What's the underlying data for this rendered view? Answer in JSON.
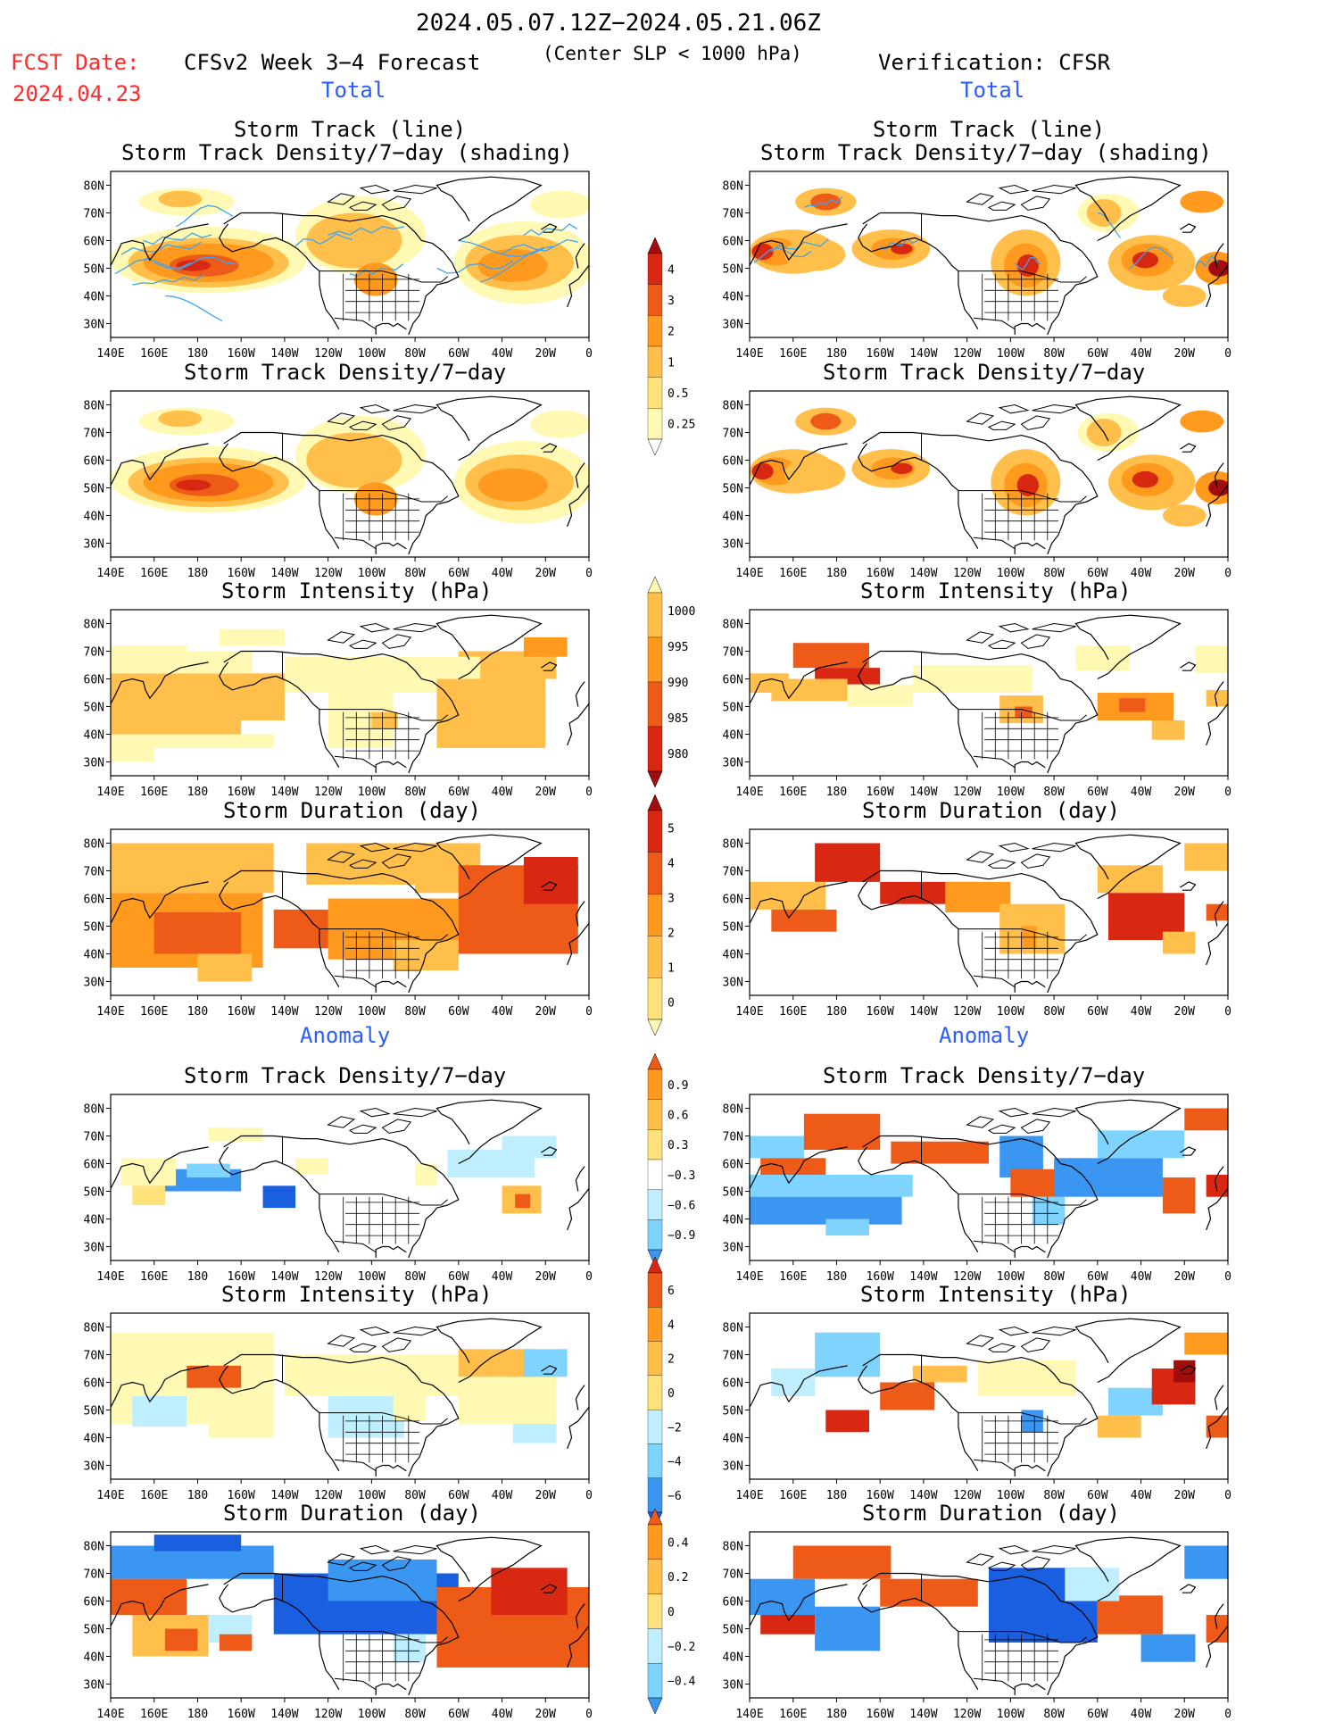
{
  "header": {
    "date_range": "2024.05.07.12Z−2024.05.21.06Z",
    "criterion": "(Center SLP < 1000 hPa)",
    "fcst_label": "FCST Date:",
    "fcst_date": "2024.04.23",
    "model_title": "CFSv2 Week 3−4 Forecast",
    "verification": "Verification: CFSR"
  },
  "sections": {
    "total_left": "Total",
    "total_right": "Total",
    "anomaly_left": "Anomaly",
    "anomaly_right": "Anomaly"
  },
  "panels": {
    "track_line_1": "Storm Track (line)",
    "track_line_2": "Storm Track Density/7−day (shading)",
    "density": "Storm Track Density/7−day",
    "intensity": "Storm Intensity (hPa)",
    "duration": "Storm Duration (day)"
  },
  "axes": {
    "lon_labels": [
      "140E",
      "160E",
      "180",
      "160W",
      "140W",
      "120W",
      "100W",
      "80W",
      "60W",
      "40W",
      "20W",
      "0"
    ],
    "lat_labels": [
      "80N",
      "70N",
      "60N",
      "50N",
      "40N",
      "30N"
    ]
  },
  "colorbars": {
    "density_total": [
      "4",
      "3",
      "2",
      "1",
      "0.5",
      "0.25"
    ],
    "intensity_total": [
      "1000",
      "995",
      "990",
      "985",
      "980"
    ],
    "duration_total": [
      "5",
      "4",
      "3",
      "2",
      "1",
      "0"
    ],
    "density_anom": [
      "0.9",
      "0.6",
      "0.3",
      "−0.3",
      "−0.6",
      "−0.9"
    ],
    "intensity_anom": [
      "6",
      "4",
      "2",
      "0",
      "−2",
      "−4",
      "−6"
    ],
    "duration_anom": [
      "0.4",
      "0.2",
      "0",
      "−0.2",
      "−0.4"
    ]
  },
  "palette": {
    "light_yellow": "#fff9b3",
    "yellow": "#ffe27a",
    "light_orange": "#ffbf4a",
    "orange": "#ff9a1e",
    "red_orange": "#ee5a18",
    "red": "#d92812",
    "dark_red": "#a10c0c",
    "light_blue": "#bfeeff",
    "sky_blue": "#7fd4ff",
    "blue": "#3a96f0",
    "dark_blue": "#1a5fe0",
    "track_line": "#3fa3ef"
  }
}
